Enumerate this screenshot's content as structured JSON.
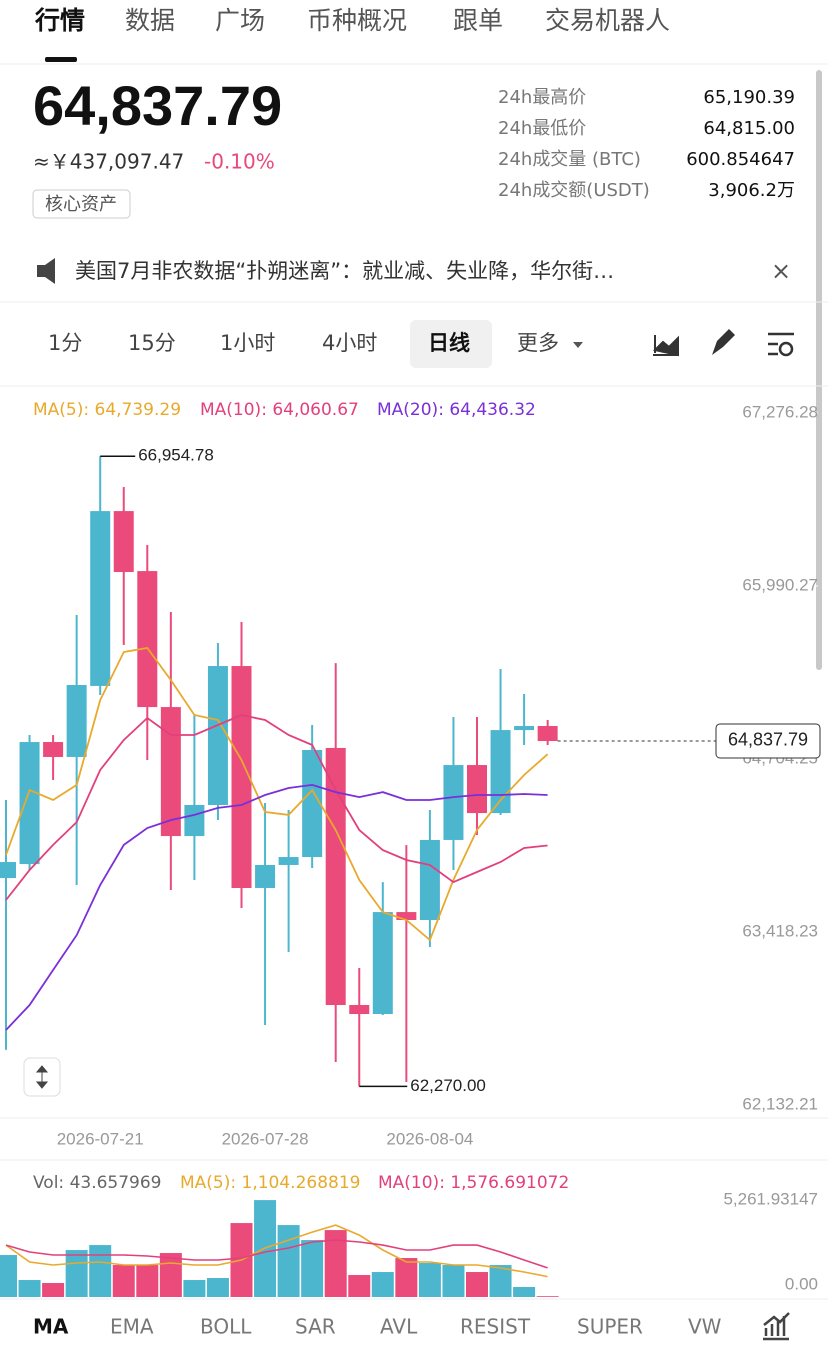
{
  "tabs": [
    "行情",
    "数据",
    "广场",
    "币种概况",
    "跟单",
    "交易机器人"
  ],
  "ticker": {
    "price": "64,837.79",
    "cny": "≈￥437,097.47",
    "change": "-0.10%",
    "tag": "核心资产"
  },
  "stats": [
    {
      "label": "24h最高价",
      "value": "65,190.39"
    },
    {
      "label": "24h最低价",
      "value": "64,815.00"
    },
    {
      "label": "24h成交量 (BTC)",
      "value": "600.854647"
    },
    {
      "label": "24h成交额(USDT)",
      "value": "3,906.2万"
    }
  ],
  "news": "美国7月非农数据“扑朔迷离”：就业减、失业降，华尔街…",
  "close": "×",
  "intervals": [
    "1分",
    "15分",
    "1小时",
    "4小时",
    "日线",
    "更多"
  ],
  "indicators": [
    "MA",
    "EMA",
    "BOLL",
    "SAR",
    "AVL",
    "RESIST",
    "SUPER",
    "VW"
  ],
  "chart_data": [
    {
      "type": "candlestick",
      "up_color": "#4db6cf",
      "down_color": "#ea4b7b",
      "categories": [
        null,
        null,
        null,
        null,
        "2026-07-21",
        null,
        null,
        null,
        null,
        null,
        null,
        "2026-07-28",
        null,
        null,
        null,
        null,
        null,
        null,
        "2026-08-04",
        null,
        null,
        null,
        null,
        null
      ],
      "open": [
        63819,
        63923,
        64830,
        64719,
        65247,
        66547,
        66101,
        65090,
        64131,
        64362,
        65395,
        63745,
        63916,
        63975,
        64786,
        62875,
        62808,
        63566,
        63507,
        64102,
        64659,
        64302,
        64919,
        64949
      ],
      "high": [
        64399,
        64882,
        64882,
        65774,
        66954.78,
        66726,
        66295,
        65797,
        65031,
        65566,
        65722,
        64377,
        64325,
        64957,
        65417,
        63150,
        63789,
        64064,
        64325,
        65016,
        65016,
        65373,
        65187,
        64994
      ],
      "low": [
        62541,
        63879,
        64548,
        63767,
        65180,
        65551,
        64696,
        63730,
        63804,
        64250,
        63596,
        62726,
        63269,
        63894,
        62451,
        62270,
        62801,
        62303,
        63306,
        63879,
        64139,
        64288,
        64808,
        64808
      ],
      "close": [
        63938,
        64830,
        64719,
        65254,
        66547,
        66094,
        65090,
        64131,
        64362,
        65395,
        63745,
        63916,
        63975,
        64771,
        62875,
        62808,
        63566,
        63507,
        64102,
        64659,
        64302,
        64919,
        64949,
        64837.79
      ],
      "last_label": "64,837.79",
      "annotations": [
        {
          "label": "66,954.78",
          "value": 66954.78
        },
        {
          "label": "62,270.00",
          "value": 62270
        }
      ],
      "series": [
        {
          "name": "MA(5): 64,739.29",
          "color": "#e8a92c",
          "values": [
            63990,
            64473,
            64399,
            64511,
            65142,
            65499,
            65529,
            65291,
            65031,
            64994,
            64696,
            64310,
            64288,
            64473,
            64176,
            63804,
            63566,
            63507,
            63358,
            63804,
            64176,
            64399,
            64585,
            64739.29
          ]
        },
        {
          "name": "MA(10): 64,060.67",
          "color": "#e2407c",
          "values": [
            63656,
            63879,
            64065,
            64235,
            64622,
            64845,
            65009,
            64882,
            64882,
            64957,
            65031,
            64994,
            64882,
            64808,
            64473,
            64176,
            64027,
            63953,
            63916,
            63789,
            63864,
            63938,
            64042,
            64060.67
          ]
        },
        {
          "name": "MA(20): 64,436.32",
          "color": "#7a2fd8",
          "values": [
            62689,
            62875,
            63135,
            63395,
            63767,
            64065,
            64191,
            64250,
            64288,
            64340,
            64362,
            64436,
            64488,
            64511,
            64458,
            64421,
            64458,
            64399,
            64399,
            64421,
            64436,
            64436,
            64444,
            64436.32
          ]
        }
      ],
      "ylim": [
        62035,
        67462
      ],
      "yticks": [
        {
          "value": 67276.28,
          "label": "67,276.28"
        },
        {
          "value": 65990.27,
          "label": "65,990.27"
        },
        {
          "value": 64704.25,
          "label": "64,704.25"
        },
        {
          "value": 63418.23,
          "label": "63,418.23"
        },
        {
          "value": 62132.21,
          "label": "62,132.21"
        }
      ]
    },
    {
      "type": "bar",
      "series": [
        {
          "name": "Vol: 43.657969",
          "color": "#666666",
          "values": [
            2277,
            921,
            759,
            2547,
            2818,
            1734,
            1734,
            2385,
            921,
            1030,
            4011,
            5257,
            3902,
            3089,
            3631,
            1192,
            1355,
            2114,
            1843,
            1734,
            1355,
            1734,
            542,
            43.657969
          ]
        },
        {
          "name": "MA(5): 1,104.268819",
          "color": "#e8a92c",
          "values": [
            2818,
            1897,
            1734,
            1843,
            1897,
            1734,
            1734,
            1843,
            1734,
            1734,
            2005,
            2656,
            3089,
            3523,
            3902,
            3360,
            2547,
            1897,
            1897,
            1734,
            1734,
            1572,
            1355,
            1104.268819
          ]
        },
        {
          "name": "MA(10): 1,576.691072",
          "color": "#e2407c",
          "values": [
            2818,
            2439,
            2276,
            2276,
            2276,
            2276,
            2222,
            2114,
            2005,
            2005,
            2114,
            2439,
            2656,
            2981,
            3089,
            2981,
            2818,
            2547,
            2547,
            2818,
            2818,
            2439,
            2005,
            1576.691072
          ]
        }
      ],
      "ylim": [
        0,
        5261.93147
      ],
      "yticks": [
        {
          "value": 5261.93147,
          "label": "5,261.93147"
        },
        {
          "value": 0,
          "label": "0.00"
        }
      ]
    }
  ]
}
